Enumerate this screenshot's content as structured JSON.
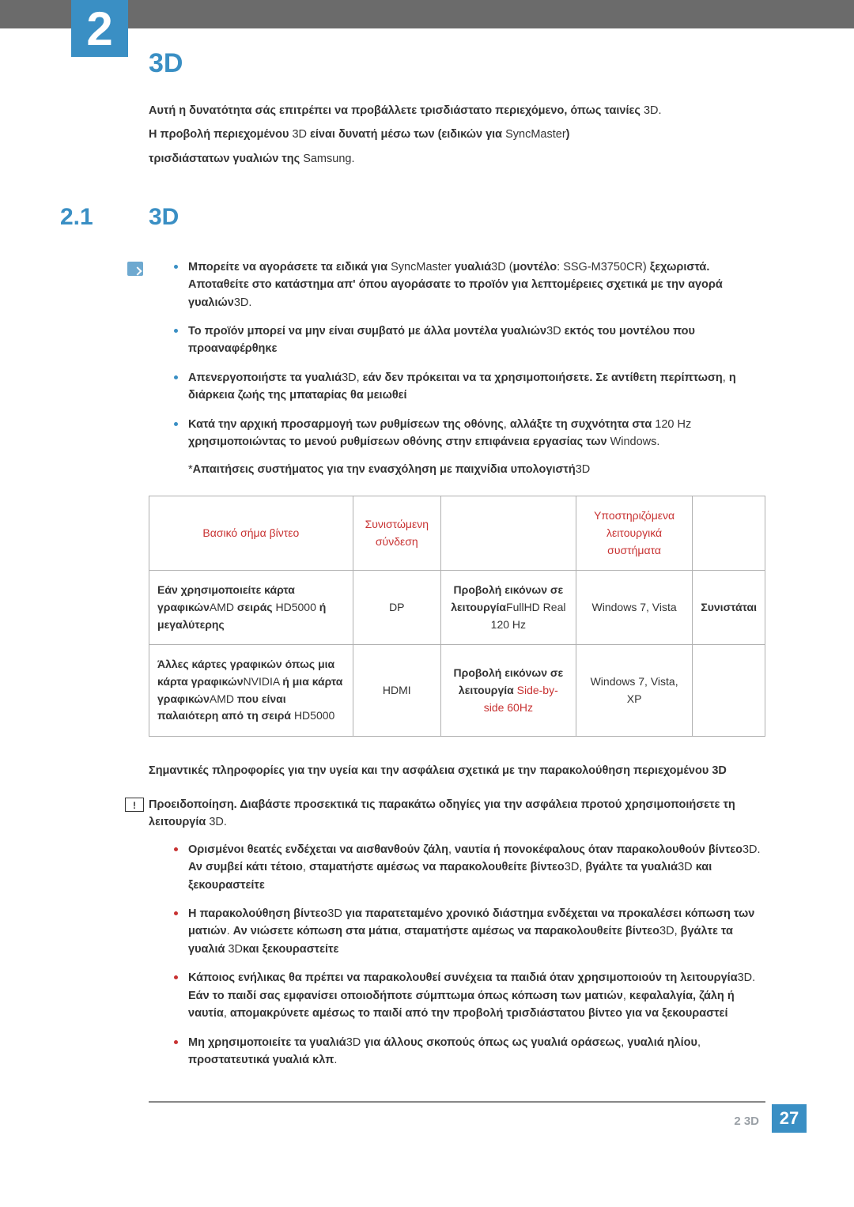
{
  "colors": {
    "accent": "#3a8fc4",
    "header_bar": "#6b6b6b",
    "table_border": "#b0b0b0",
    "red": "#c83232",
    "footer_text": "#9aa0a6"
  },
  "chapter": {
    "number": "2",
    "title": "3D"
  },
  "intro": {
    "p1_bold": "Αυτή η δυνατότητα σάς επιτρέπει να προβάλλετε τρισδιάστατο περιεχόμενο, όπως ταινίες",
    "p1_tail": "3D.",
    "p2_a": "Η προβολή περιεχομένου",
    "p2_b": "3D",
    "p2_c": " είναι δυνατή μέσω των ",
    "p2_paren_bold": "(ειδικών για ",
    "p2_brand": "SyncMaster",
    "p2_paren_close": ")",
    "p3_bold": "τρισδιάστατων γυαλιών της ",
    "p3_tail": "Samsung."
  },
  "section": {
    "num": "2.1",
    "title": "3D"
  },
  "notes": [
    {
      "parts": [
        {
          "t": "Μπορείτε να αγοράσετε τα ειδικά για ",
          "b": true
        },
        {
          "t": "SyncMaster "
        },
        {
          "t": "γυαλιά",
          "b": true
        },
        {
          "t": "3D ("
        },
        {
          "t": "μοντέλο",
          "b": true
        },
        {
          "t": ": SSG-M3750CR) "
        },
        {
          "t": "ξεχωριστά. Αποταθείτε στο κατάστημα απ' όπου αγοράσατε το προϊόν για λεπτομέρειες σχετικά με την αγορά γυαλιών",
          "b": true
        },
        {
          "t": "3D."
        }
      ]
    },
    {
      "parts": [
        {
          "t": "Το προϊόν μπορεί να μην είναι συμβατό με άλλα μοντέλα γυαλιών",
          "b": true
        },
        {
          "t": "3D "
        },
        {
          "t": "εκτός του μοντέλου που προαναφέρθηκε",
          "b": true
        }
      ]
    },
    {
      "parts": [
        {
          "t": "Απενεργοποιήστε τα γυαλιά",
          "b": true
        },
        {
          "t": "3D, "
        },
        {
          "t": "εάν δεν πρόκειται να τα χρησιμοποιήσετε. Σε αντίθετη περίπτωση",
          "b": true
        },
        {
          "t": ", "
        },
        {
          "t": "η διάρκεια ζωής της μπαταρίας θα μειωθεί",
          "b": true
        }
      ]
    },
    {
      "parts": [
        {
          "t": "Κατά την αρχική προσαρμογή των ρυθμίσεων της οθόνης",
          "b": true
        },
        {
          "t": ", "
        },
        {
          "t": "αλλάξτε τη συχνότητα στα ",
          "b": true
        },
        {
          "t": "120 Hz "
        },
        {
          "t": "χρησιμοποιώντας το μενού ρυθμίσεων οθόνης στην επιφάνεια εργασίας των ",
          "b": true
        },
        {
          "t": "Windows."
        }
      ]
    },
    {
      "parts": [
        {
          "t": "*"
        },
        {
          "t": "Απαιτήσεις συστήματος για την ενασχόληση με παιχνίδια υπολογιστή",
          "b": true
        },
        {
          "t": "3D"
        }
      ],
      "no_bullet": true
    }
  ],
  "table": {
    "headers": [
      "Βασικό σήμα βίντεο",
      "Συνιστώμενη σύνδεση",
      "",
      "Υποστηριζόμενα λειτουργικά συστήματα",
      ""
    ],
    "rows": [
      {
        "c0": {
          "parts": [
            {
              "t": "Εάν χρησιμοποιείτε κάρτα γραφικών",
              "b": true
            },
            {
              "t": "AMD "
            },
            {
              "t": "σειράς ",
              "b": true
            },
            {
              "t": "HD5000 "
            },
            {
              "t": "ή μεγαλύτερης",
              "b": true
            }
          ]
        },
        "c1": "DP",
        "c2": {
          "parts": [
            {
              "t": "Προβολή εικόνων σε λειτουργία",
              "b": true
            },
            {
              "t": "FullHD Real 120 Hz"
            }
          ]
        },
        "c3": "Windows 7, Vista",
        "c4": {
          "parts": [
            {
              "t": "Συνιστάται",
              "b": true
            }
          ]
        }
      },
      {
        "c0": {
          "parts": [
            {
              "t": "Άλλες κάρτες γραφικών όπως μια κάρτα γραφικών",
              "b": true
            },
            {
              "t": "NVIDIA "
            },
            {
              "t": "ή μια κάρτα γραφικών",
              "b": true
            },
            {
              "t": "AMD "
            },
            {
              "t": "που είναι παλαιότερη από τη σειρά ",
              "b": true
            },
            {
              "t": "HD5000"
            }
          ]
        },
        "c1": "HDMI",
        "c2": {
          "parts": [
            {
              "t": "Προβολή εικόνων σε λειτουργία",
              "b": true
            },
            {
              "t": " "
            },
            {
              "t": "Side-by-side 60Hz",
              "red": true
            }
          ]
        },
        "c3": "Windows 7, Vista, XP",
        "c4": ""
      }
    ]
  },
  "safety_heading": {
    "a": "Σημαντικές πληροφορίες για την υγεία και την ασφάλεια σχετικά με την παρακολούθηση περιεχομένου",
    "b": "3D"
  },
  "warning": {
    "lead_a": "Προειδοποίηση. Διαβάστε προσεκτικά τις παρακάτω οδηγίες για την ασφάλεια προτού χρησιμοποιήσετε τη λειτουργία",
    "lead_b": "3D."
  },
  "safety_items": [
    {
      "parts": [
        {
          "t": "Ορισμένοι θεατές ενδέχεται να αισθανθούν ζάλη",
          "b": true
        },
        {
          "t": ", "
        },
        {
          "t": "ναυτία ή πονοκέφαλους όταν παρακολουθούν βίντεο",
          "b": true
        },
        {
          "t": "3D. "
        },
        {
          "t": "Αν συμβεί κάτι τέτοιο",
          "b": true
        },
        {
          "t": ", "
        },
        {
          "t": "σταματήστε αμέσως να παρακολουθείτε βίντεο",
          "b": true
        },
        {
          "t": "3D, "
        },
        {
          "t": "βγάλτε τα γυαλιά",
          "b": true
        },
        {
          "t": "3D "
        },
        {
          "t": "και ξεκουραστείτε",
          "b": true
        }
      ]
    },
    {
      "parts": [
        {
          "t": "Η παρακολούθηση βίντεο",
          "b": true
        },
        {
          "t": "3D "
        },
        {
          "t": "για παρατεταμένο χρονικό διάστημα ενδέχεται να προκαλέσει κόπωση των ματιών",
          "b": true
        },
        {
          "t": ". "
        },
        {
          "t": "Αν νιώσετε κόπωση στα μάτια",
          "b": true
        },
        {
          "t": ", "
        },
        {
          "t": "σταματήστε αμέσως να παρακολουθείτε βίντεο",
          "b": true
        },
        {
          "t": "3D, "
        },
        {
          "t": "βγάλτε τα γυαλιά ",
          "b": true
        },
        {
          "t": "3D"
        },
        {
          "t": "και ξεκουραστείτε",
          "b": true
        }
      ]
    },
    {
      "parts": [
        {
          "t": "Κάποιος ενήλικας θα πρέπει να παρακολουθεί συνέχεια τα παιδιά όταν χρησιμοποιούν τη λειτουργία",
          "b": true
        },
        {
          "t": "3D. "
        },
        {
          "t": "Εάν το παιδί σας εμφανίσει οποιοδήποτε σύμπτωμα όπως κόπωση των ματιών",
          "b": true
        },
        {
          "t": ", "
        },
        {
          "t": "κεφαλαλγία, ζάλη ή ναυτία",
          "b": true
        },
        {
          "t": ", "
        },
        {
          "t": "απομακρύνετε αμέσως το παιδί από την προβολή τρισδιάστατου βίντεο για να ξεκουραστεί",
          "b": true
        }
      ]
    },
    {
      "parts": [
        {
          "t": "Μη χρησιμοποιείτε τα γυαλιά",
          "b": true
        },
        {
          "t": "3D "
        },
        {
          "t": "για άλλους σκοπούς όπως ως γυαλιά οράσεως",
          "b": true
        },
        {
          "t": ", "
        },
        {
          "t": "γυαλιά ηλίου",
          "b": true
        },
        {
          "t": ", "
        },
        {
          "t": "προστατευτικά γυαλιά κλπ",
          "b": true
        },
        {
          "t": "."
        }
      ]
    }
  ],
  "footer": {
    "label": "2 3D",
    "page": "27"
  }
}
